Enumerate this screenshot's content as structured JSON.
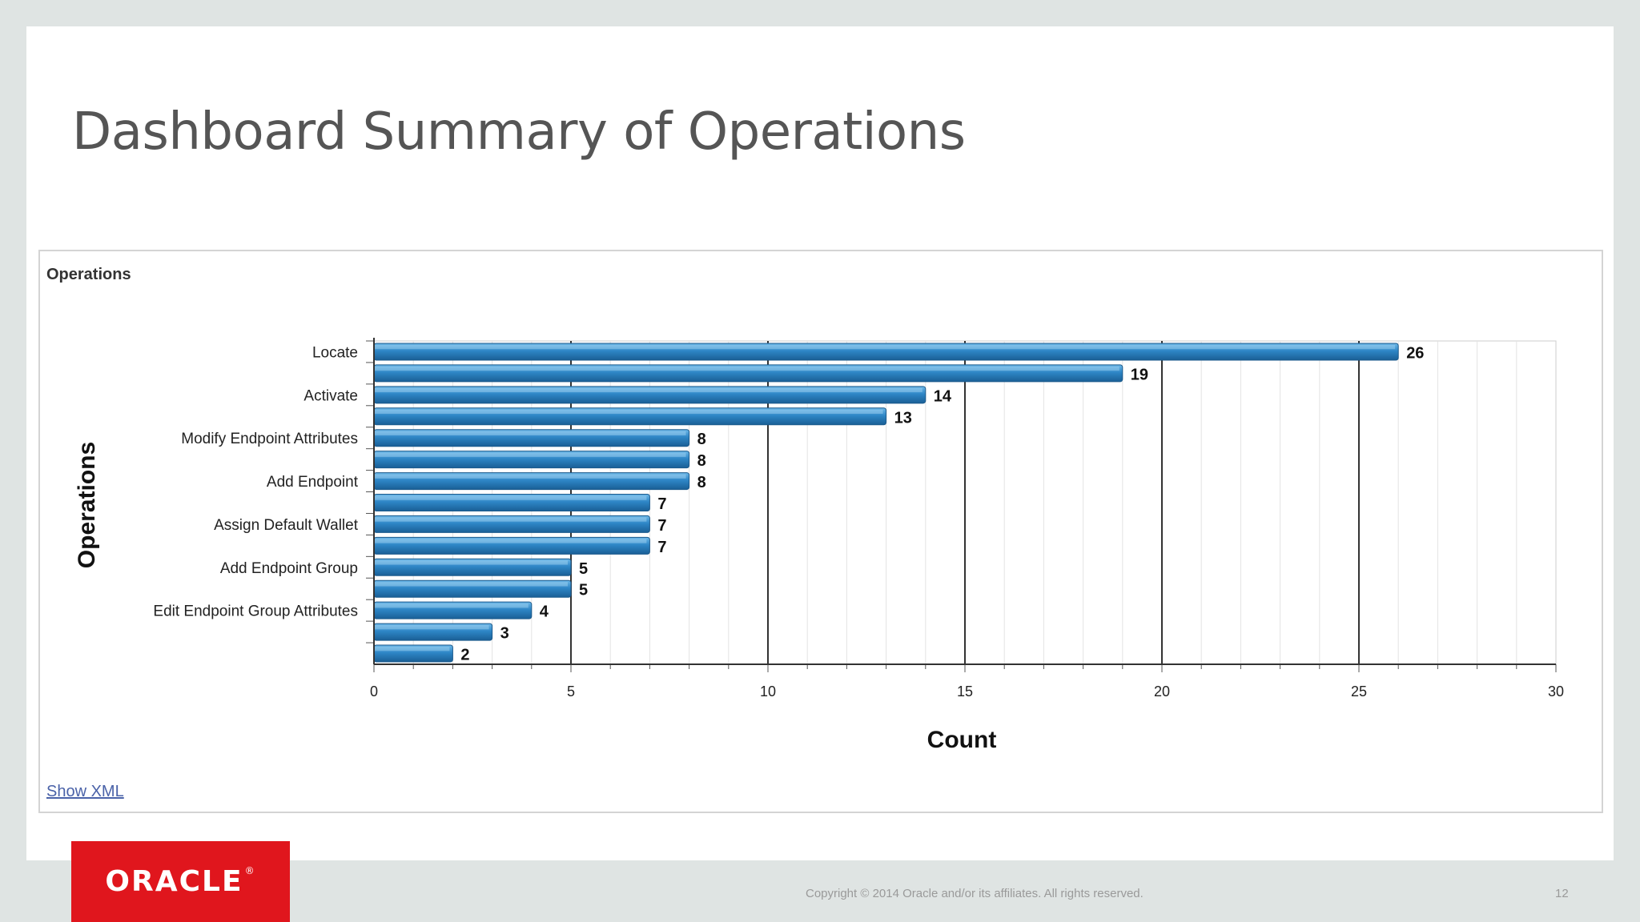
{
  "slide": {
    "title": "Dashboard Summary of Operations",
    "copyright": "Copyright © 2014 Oracle and/or its affiliates. All rights reserved.",
    "page_number": "12",
    "logo_text": "ORACLE"
  },
  "panel": {
    "title": "Operations",
    "show_xml_label": "Show XML"
  },
  "chart_data": {
    "type": "bar",
    "orientation": "horizontal",
    "title": "",
    "xlabel": "Count",
    "ylabel": "Operations",
    "xlim": [
      0,
      30
    ],
    "x_ticks": [
      0,
      5,
      10,
      15,
      20,
      25,
      30
    ],
    "categories": [
      "Locate",
      "",
      "Activate",
      "",
      "Modify Endpoint Attributes",
      "",
      "Add Endpoint",
      "",
      "Assign Default Wallet",
      "",
      "Add Endpoint Group",
      "",
      "Edit Endpoint Group Attributes",
      "",
      ""
    ],
    "values": [
      26,
      19,
      14,
      13,
      8,
      8,
      8,
      7,
      7,
      7,
      5,
      5,
      4,
      3,
      2
    ],
    "bar_color": "#2e86c6",
    "grid": true,
    "data_labels": true
  }
}
